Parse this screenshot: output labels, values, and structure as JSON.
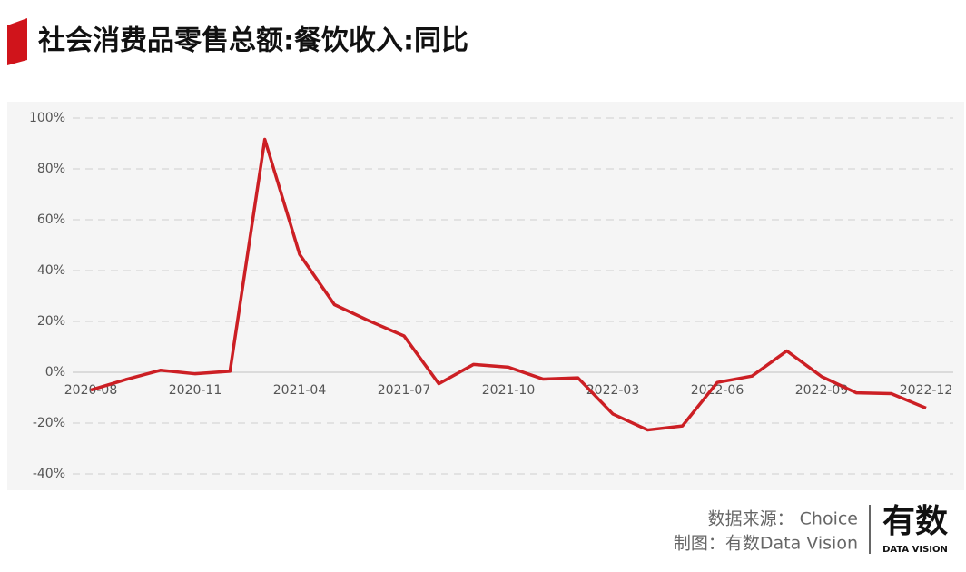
{
  "chart_data": {
    "type": "line",
    "title": "社会消费品零售总额:餐饮收入:同比",
    "categories": [
      "2020-08",
      null,
      null,
      "2020-11",
      null,
      null,
      "2021-04",
      null,
      null,
      "2021-07",
      null,
      null,
      "2021-10",
      null,
      null,
      "2022-03",
      null,
      null,
      "2022-06",
      null,
      null,
      "2022-09",
      null,
      null,
      "2022-12"
    ],
    "series": [
      {
        "name": "社会消费品零售总额:餐饮收入:同比",
        "color": "#cc1f24",
        "values": [
          -7.0,
          -2.9,
          0.8,
          -0.6,
          0.4,
          91.6,
          46.4,
          26.6,
          20.2,
          14.3,
          -4.5,
          3.1,
          2.0,
          -2.7,
          -2.2,
          -16.4,
          -22.7,
          -21.1,
          -4.0,
          -1.5,
          8.4,
          -1.7,
          -8.1,
          -8.4,
          -14.1
        ]
      }
    ],
    "ylim": [
      -40,
      100
    ],
    "yticks": [
      {
        "value": -40,
        "label": "-40%"
      },
      {
        "value": -20,
        "label": "-20%"
      },
      {
        "value": 0,
        "label": "0%"
      },
      {
        "value": 20,
        "label": "20%"
      },
      {
        "value": 40,
        "label": "40%"
      },
      {
        "value": 60,
        "label": "60%"
      },
      {
        "value": 80,
        "label": "80%"
      },
      {
        "value": 100,
        "label": "100%"
      }
    ],
    "grid": true
  },
  "footer": {
    "source": "数据来源： Choice",
    "maker": "制图：有数Data Vision",
    "logo": "有数",
    "logo_sub": "DATA VISION"
  }
}
